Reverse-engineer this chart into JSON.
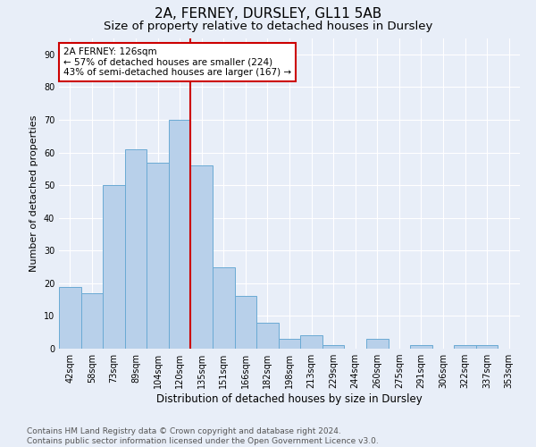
{
  "title1": "2A, FERNEY, DURSLEY, GL11 5AB",
  "title2": "Size of property relative to detached houses in Dursley",
  "xlabel": "Distribution of detached houses by size in Dursley",
  "ylabel": "Number of detached properties",
  "categories": [
    "42sqm",
    "58sqm",
    "73sqm",
    "89sqm",
    "104sqm",
    "120sqm",
    "135sqm",
    "151sqm",
    "166sqm",
    "182sqm",
    "198sqm",
    "213sqm",
    "229sqm",
    "244sqm",
    "260sqm",
    "275sqm",
    "291sqm",
    "306sqm",
    "322sqm",
    "337sqm",
    "353sqm"
  ],
  "values": [
    19,
    17,
    50,
    61,
    57,
    70,
    56,
    25,
    16,
    8,
    3,
    4,
    1,
    0,
    3,
    0,
    1,
    0,
    1,
    1,
    0
  ],
  "bar_color": "#b8d0ea",
  "bar_edge_color": "#6aaad4",
  "bar_width": 1.0,
  "vline_x": 5.5,
  "vline_color": "#cc0000",
  "annotation_text": "2A FERNEY: 126sqm\n← 57% of detached houses are smaller (224)\n43% of semi-detached houses are larger (167) →",
  "annotation_box_color": "#ffffff",
  "annotation_box_edge_color": "#cc0000",
  "ylim": [
    0,
    95
  ],
  "yticks": [
    0,
    10,
    20,
    30,
    40,
    50,
    60,
    70,
    80,
    90
  ],
  "footer": "Contains HM Land Registry data © Crown copyright and database right 2024.\nContains public sector information licensed under the Open Government Licence v3.0.",
  "background_color": "#e8eef8",
  "grid_color": "#ffffff",
  "title1_fontsize": 11,
  "title2_fontsize": 9.5,
  "xlabel_fontsize": 8.5,
  "ylabel_fontsize": 8,
  "tick_fontsize": 7,
  "annotation_fontsize": 7.5,
  "footer_fontsize": 6.5
}
